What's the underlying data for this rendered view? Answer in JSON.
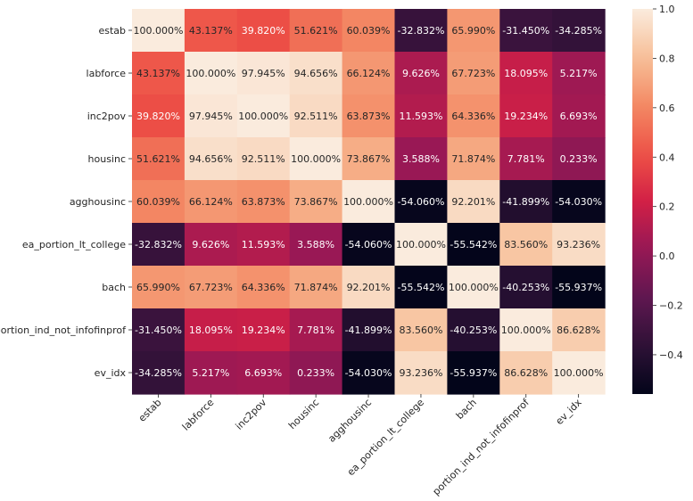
{
  "chart_data": {
    "type": "heatmap",
    "title": "",
    "xlabel": "",
    "ylabel": "",
    "labels": [
      "estab",
      "labforce",
      "inc2pov",
      "housinc",
      "agghousinc",
      "ea_portion_lt_college",
      "bach",
      "portion_ind_not_infofinprof",
      "ev_idx"
    ],
    "values": [
      [
        1.0,
        0.43137,
        0.3982,
        0.51621,
        0.60039,
        -0.32832,
        0.6599,
        -0.3145,
        -0.34285
      ],
      [
        0.43137,
        1.0,
        0.97945,
        0.94656,
        0.66124,
        0.09626,
        0.67723,
        0.18095,
        0.05217
      ],
      [
        0.3982,
        0.97945,
        1.0,
        0.92511,
        0.63873,
        0.11593,
        0.64336,
        0.19234,
        0.06693
      ],
      [
        0.51621,
        0.94656,
        0.92511,
        1.0,
        0.73867,
        0.03588,
        0.71874,
        0.07781,
        0.00233
      ],
      [
        0.60039,
        0.66124,
        0.63873,
        0.73867,
        1.0,
        -0.5406,
        0.92201,
        -0.41899,
        -0.5403
      ],
      [
        -0.32832,
        0.09626,
        0.11593,
        0.03588,
        -0.5406,
        1.0,
        -0.55542,
        0.8356,
        0.93236
      ],
      [
        0.6599,
        0.67723,
        0.64336,
        0.71874,
        0.92201,
        -0.55542,
        1.0,
        -0.40253,
        -0.55937
      ],
      [
        -0.3145,
        0.18095,
        0.19234,
        0.07781,
        -0.41899,
        0.8356,
        -0.40253,
        1.0,
        0.86628
      ],
      [
        -0.34285,
        0.05217,
        0.06693,
        0.00233,
        -0.5403,
        0.93236,
        -0.55937,
        0.86628,
        1.0
      ]
    ],
    "cell_labels": [
      [
        "100.000%",
        "43.137%",
        "39.820%",
        "51.621%",
        "60.039%",
        "-32.832%",
        "65.990%",
        "-31.450%",
        "-34.285%"
      ],
      [
        "43.137%",
        "100.000%",
        "97.945%",
        "94.656%",
        "66.124%",
        "9.626%",
        "67.723%",
        "18.095%",
        "5.217%"
      ],
      [
        "39.820%",
        "97.945%",
        "100.000%",
        "92.511%",
        "63.873%",
        "11.593%",
        "64.336%",
        "19.234%",
        "6.693%"
      ],
      [
        "51.621%",
        "94.656%",
        "92.511%",
        "100.000%",
        "73.867%",
        "3.588%",
        "71.874%",
        "7.781%",
        "0.233%"
      ],
      [
        "60.039%",
        "66.124%",
        "63.873%",
        "73.867%",
        "100.000%",
        "-54.060%",
        "92.201%",
        "-41.899%",
        "-54.030%"
      ],
      [
        "-32.832%",
        "9.626%",
        "11.593%",
        "3.588%",
        "-54.060%",
        "100.000%",
        "-55.542%",
        "83.560%",
        "93.236%"
      ],
      [
        "65.990%",
        "67.723%",
        "64.336%",
        "71.874%",
        "92.201%",
        "-55.542%",
        "100.000%",
        "-40.253%",
        "-55.937%"
      ],
      [
        "-31.450%",
        "18.095%",
        "19.234%",
        "7.781%",
        "-41.899%",
        "83.560%",
        "-40.253%",
        "100.000%",
        "86.628%"
      ],
      [
        "-34.285%",
        "5.217%",
        "6.693%",
        "0.233%",
        "-54.030%",
        "93.236%",
        "-55.937%",
        "86.628%",
        "100.000%"
      ]
    ],
    "colorbar": {
      "range": [
        -0.559,
        1.0
      ],
      "ticks": [
        -0.4,
        -0.2,
        0.0,
        0.2,
        0.4,
        0.6,
        0.8,
        1.0
      ],
      "tick_labels": [
        "−0.4",
        "−0.2",
        "0.0",
        "0.2",
        "0.4",
        "0.6",
        "0.8",
        "1.0"
      ],
      "colormap": "rocket"
    }
  }
}
